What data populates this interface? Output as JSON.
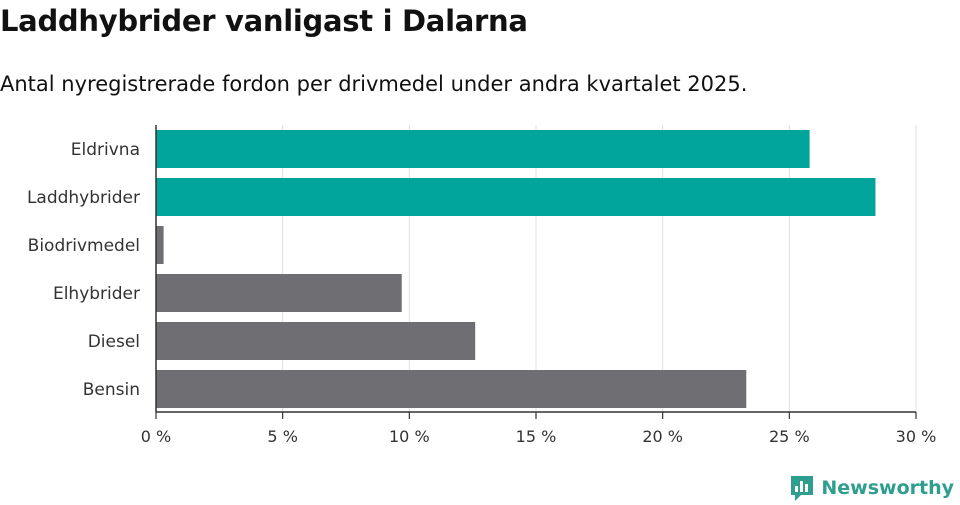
{
  "title": "Laddhybrider vanligast i Dalarna",
  "subtitle": "Antal nyregistrerade fordon per drivmedel under andra kvartalet 2025.",
  "brand": {
    "name": "Newsworthy",
    "icon": "newsworthy-logo-icon"
  },
  "colors": {
    "highlight": "#00a49a",
    "default": "#6e6e73",
    "grid": "#e0e0e0",
    "axis": "#333333"
  },
  "chart_data": {
    "type": "bar",
    "orientation": "horizontal",
    "categories": [
      "Eldrivna",
      "Laddhybrider",
      "Biodrivmedel",
      "Elhybrider",
      "Diesel",
      "Bensin"
    ],
    "values": [
      25.8,
      28.4,
      0.3,
      9.7,
      12.6,
      23.3
    ],
    "highlighted": [
      true,
      true,
      false,
      false,
      false,
      false
    ],
    "xlim": [
      0,
      30
    ],
    "xticks": [
      0,
      5,
      10,
      15,
      20,
      25,
      30
    ],
    "xtick_labels": [
      "0 %",
      "5 %",
      "10 %",
      "15 %",
      "20 %",
      "25 %",
      "30 %"
    ],
    "grid": true
  }
}
